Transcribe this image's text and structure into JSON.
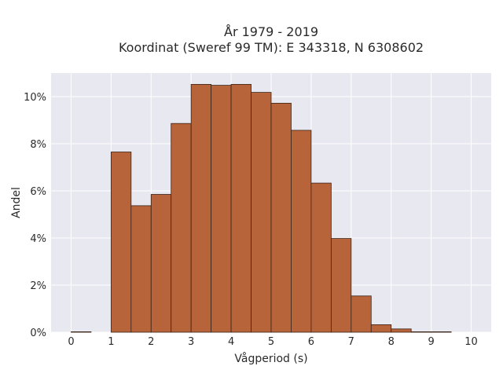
{
  "chart_data": {
    "type": "bar",
    "title": "År 1979 - 2019",
    "subtitle": "Koordinat (Sweref 99 TM): E 343318, N 6308602",
    "xlabel": "Vågperiod (s)",
    "ylabel": "Andel",
    "xlim": [
      -0.5,
      10.5
    ],
    "ylim": [
      0,
      11
    ],
    "x_ticks": [
      0,
      1,
      2,
      3,
      4,
      5,
      6,
      7,
      8,
      9,
      10
    ],
    "y_ticks": [
      0,
      2,
      4,
      6,
      8,
      10
    ],
    "y_tick_suffix": "%",
    "bin_width": 0.5,
    "bins": [
      {
        "x0": 0.0,
        "value": 0.02
      },
      {
        "x0": 0.5,
        "value": 0.0
      },
      {
        "x0": 1.0,
        "value": 7.65
      },
      {
        "x0": 1.5,
        "value": 5.37
      },
      {
        "x0": 2.0,
        "value": 5.85
      },
      {
        "x0": 2.5,
        "value": 8.86
      },
      {
        "x0": 3.0,
        "value": 10.52
      },
      {
        "x0": 3.5,
        "value": 10.48
      },
      {
        "x0": 4.0,
        "value": 10.52
      },
      {
        "x0": 4.5,
        "value": 10.18
      },
      {
        "x0": 5.0,
        "value": 9.72
      },
      {
        "x0": 5.5,
        "value": 8.57
      },
      {
        "x0": 6.0,
        "value": 6.33
      },
      {
        "x0": 6.5,
        "value": 3.98
      },
      {
        "x0": 7.0,
        "value": 1.54
      },
      {
        "x0": 7.5,
        "value": 0.32
      },
      {
        "x0": 8.0,
        "value": 0.14
      },
      {
        "x0": 8.5,
        "value": 0.02
      },
      {
        "x0": 9.0,
        "value": 0.02
      },
      {
        "x0": 9.5,
        "value": 0.0
      }
    ],
    "bar_color": "#b8643a",
    "bar_edge_color": "#3a2418",
    "plot_bg": "#e8e8f0",
    "grid": true,
    "grid_color": "#ffffff"
  }
}
